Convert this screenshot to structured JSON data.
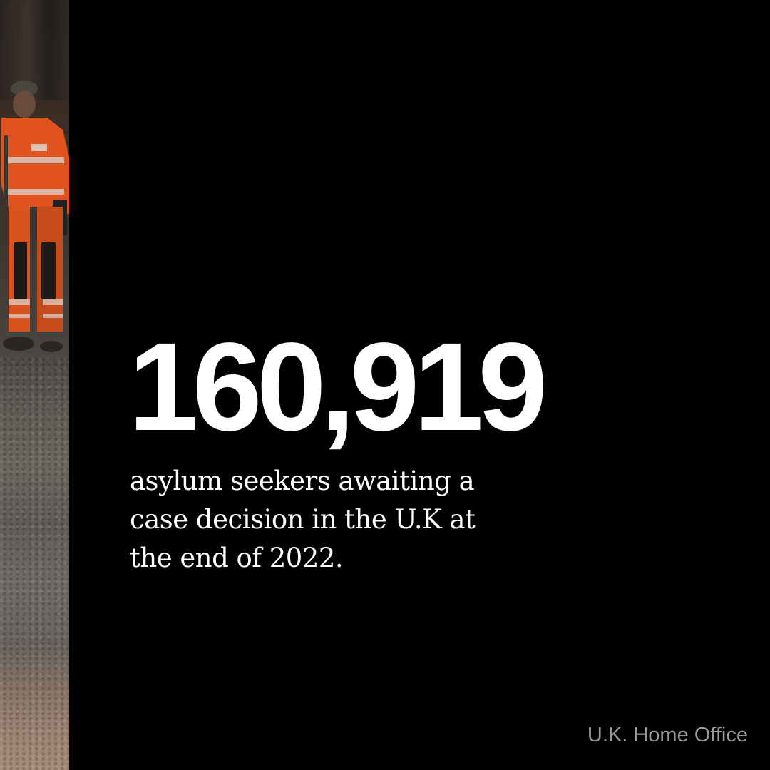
{
  "stat": {
    "number": "160,919",
    "caption_line_1": "asylum seekers awaiting a",
    "caption_line_2": "case decision in the U.K at",
    "caption_line_3": "the end of 2022."
  },
  "source": "U.K. Home Office",
  "colors": {
    "background": "#000000",
    "text": "#ffffff",
    "source_text": "#9a9a9a",
    "hi_vis_orange": "#e0531f"
  }
}
